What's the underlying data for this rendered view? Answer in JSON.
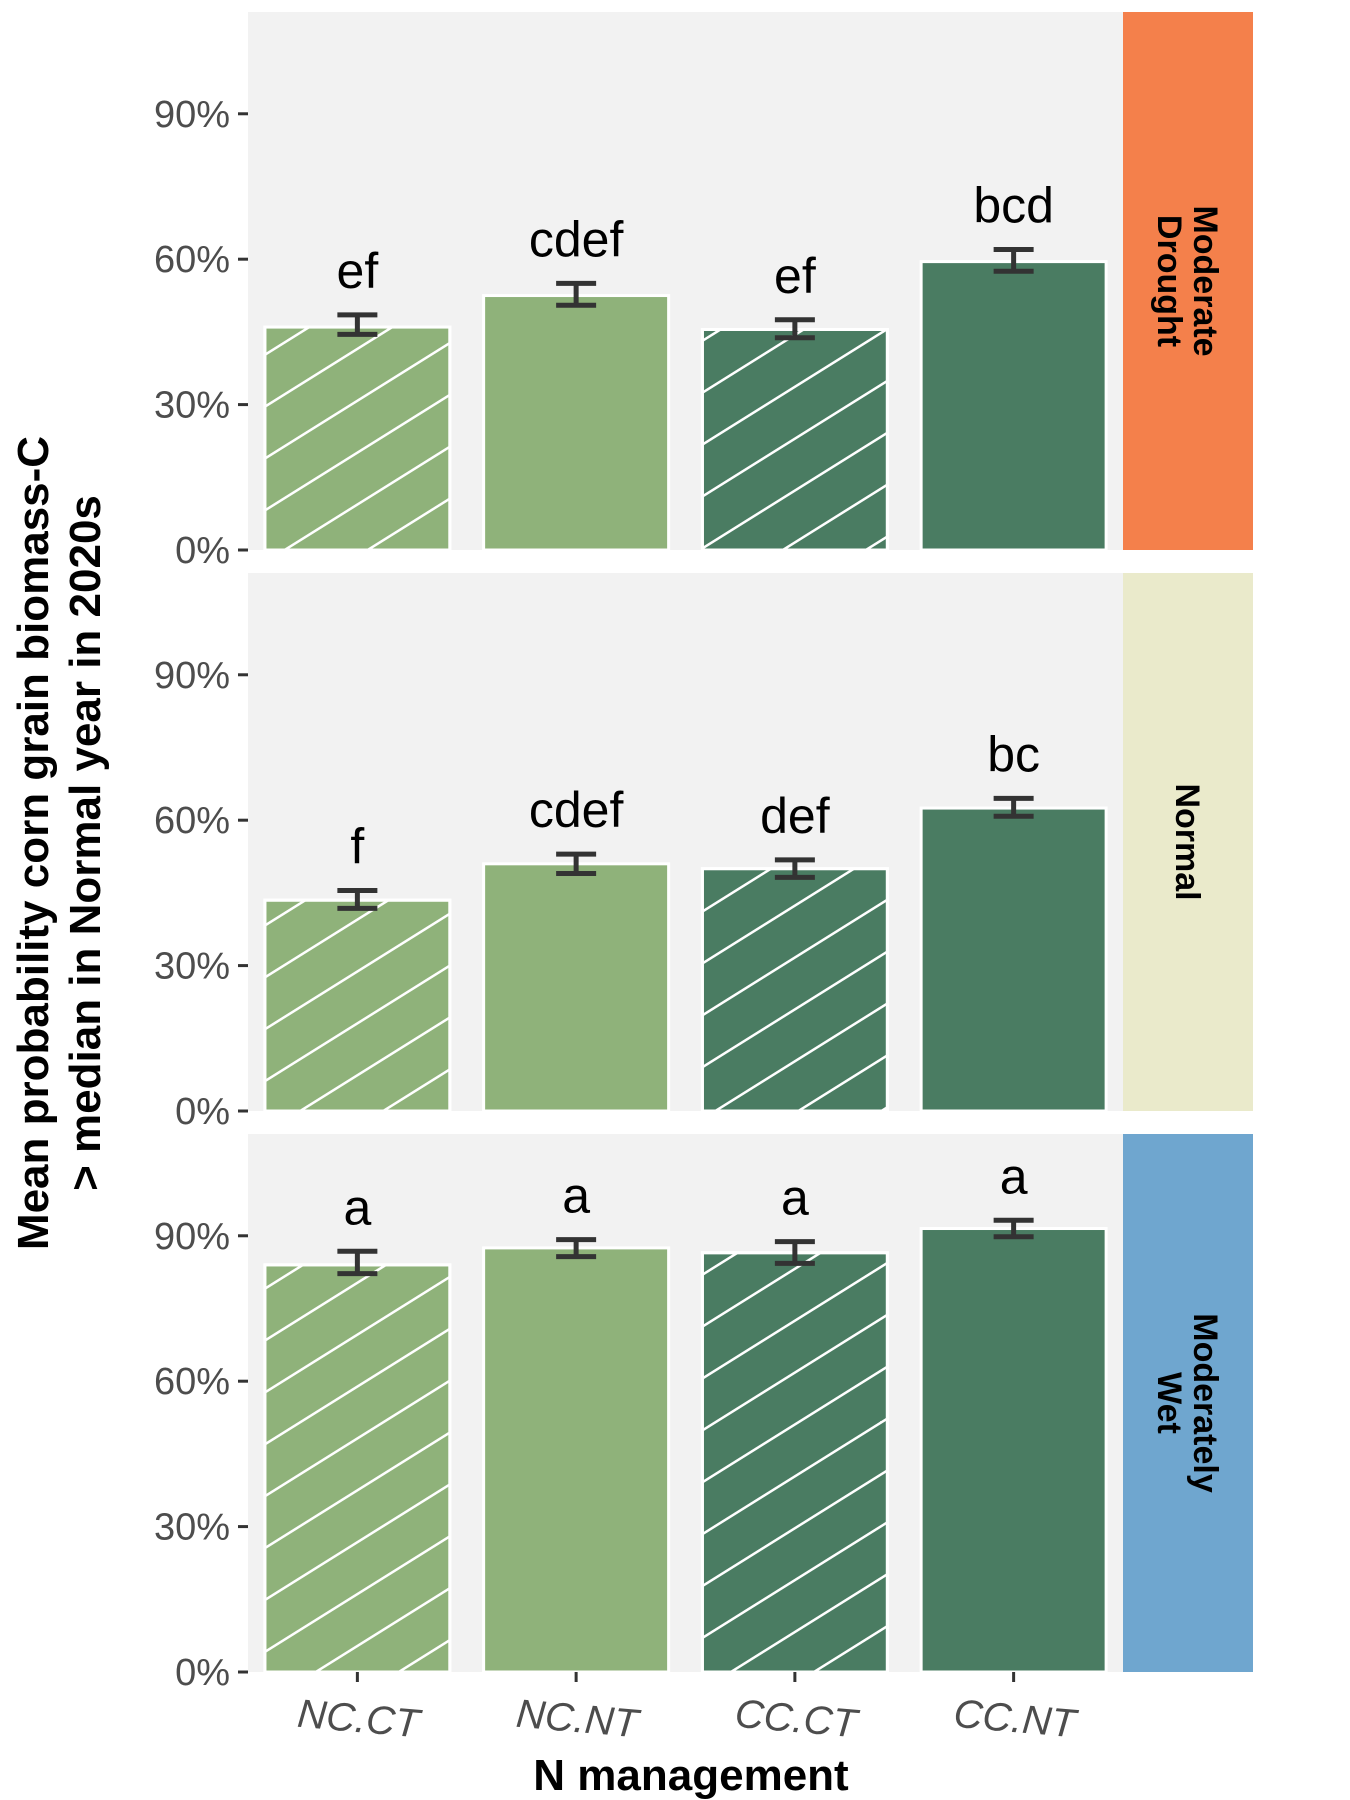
{
  "chart_data": {
    "type": "bar",
    "xlabel": "N management",
    "ylabel_lines": [
      "Mean probability corn grain biomass-C",
      "> median in Normal year in 2020s"
    ],
    "categories": [
      "NC.CT",
      "NC.NT",
      "CC.CT",
      "CC.NT"
    ],
    "category_styles": [
      {
        "color": "#8fb27a",
        "hatched": true
      },
      {
        "color": "#8fb27a",
        "hatched": false
      },
      {
        "color": "#4a7c62",
        "hatched": true
      },
      {
        "color": "#4a7c62",
        "hatched": false
      }
    ],
    "ylim": [
      0,
      111
    ],
    "yticks": [
      0,
      30,
      60,
      90
    ],
    "ytick_labels": [
      "0%",
      "30%",
      "60%",
      "90%"
    ],
    "grid": false,
    "panel_background": "#f2f2f2",
    "error_bar_color": "#333333",
    "panels": [
      {
        "strip_lines": [
          "Moderate",
          "Drought"
        ],
        "strip_color": "#f4804b",
        "values": [
          46,
          52.5,
          45.5,
          59.5
        ],
        "err_low": [
          44.5,
          50.5,
          43.8,
          57.5
        ],
        "err_high": [
          48.5,
          55,
          47.5,
          62
        ],
        "letters": [
          "ef",
          "cdef",
          "ef",
          "bcd"
        ]
      },
      {
        "strip_lines": [
          "Normal"
        ],
        "strip_color": "#eaeacb",
        "values": [
          43.5,
          51,
          50,
          62.5
        ],
        "err_low": [
          41.8,
          49,
          48.2,
          60.8
        ],
        "err_high": [
          45.5,
          53,
          51.8,
          64.5
        ],
        "letters": [
          "f",
          "cdef",
          "def",
          "bc"
        ]
      },
      {
        "strip_lines": [
          "Moderately",
          "Wet"
        ],
        "strip_color": "#6fa6cf",
        "values": [
          84,
          87.5,
          86.5,
          91.5
        ],
        "err_low": [
          82.2,
          85.7,
          84.3,
          89.8
        ],
        "err_high": [
          86.8,
          89.2,
          88.8,
          93.2
        ],
        "letters": [
          "a",
          "a",
          "a",
          "a"
        ]
      }
    ]
  }
}
